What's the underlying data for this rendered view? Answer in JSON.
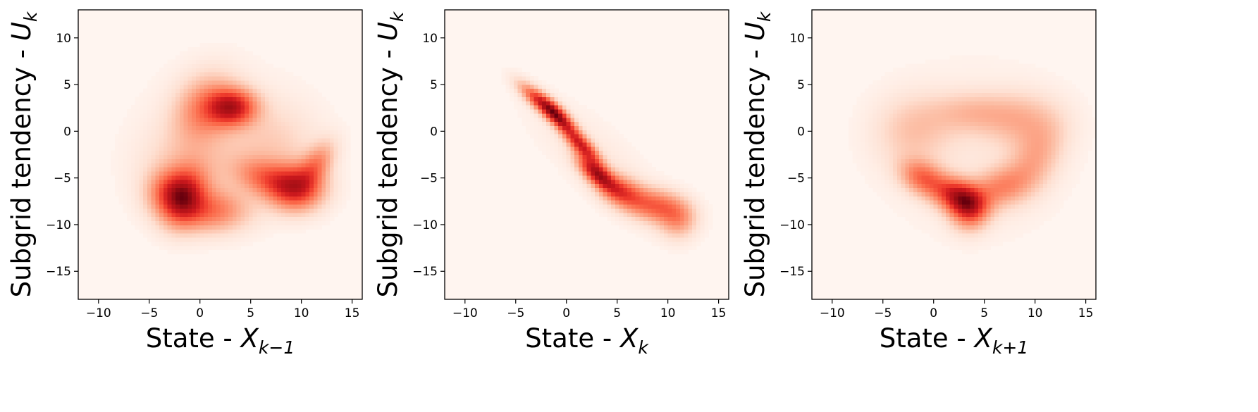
{
  "chart_data": [
    {
      "type": "heatmap",
      "colormap": "Reds",
      "xlabel": {
        "text": "State - ",
        "var": "X",
        "sub": "k−1"
      },
      "ylabel": {
        "text": "Subgrid tendency - ",
        "var": "U",
        "sub": "k"
      },
      "xlim": [
        -12,
        16
      ],
      "ylim": [
        -18,
        13
      ],
      "xticks": [
        -10,
        -5,
        0,
        5,
        10,
        15
      ],
      "yticks": [
        -15,
        -10,
        -5,
        0,
        5,
        10
      ],
      "xtick_labels": [
        "−10",
        "−5",
        "0",
        "5",
        "10",
        "15"
      ],
      "ytick_labels": [
        "−15",
        "−10",
        "−5",
        "0",
        "5",
        "10"
      ],
      "density_components": [
        {
          "x": 3.2,
          "y": 2.6,
          "sx": 1.6,
          "sy": 1.3,
          "rho": 0.0,
          "w": 1.0
        },
        {
          "x": 0.5,
          "y": 2.5,
          "sx": 2.0,
          "sy": 2.4,
          "rho": 0.2,
          "w": 0.5
        },
        {
          "x": -1.5,
          "y": -7.0,
          "sx": 1.4,
          "sy": 2.0,
          "rho": 0.2,
          "w": 0.8
        },
        {
          "x": -3.0,
          "y": -6.5,
          "sx": 1.5,
          "sy": 1.6,
          "rho": 0.0,
          "w": 0.55
        },
        {
          "x": 1.0,
          "y": -8.5,
          "sx": 2.5,
          "sy": 1.5,
          "rho": 0.0,
          "w": 0.55
        },
        {
          "x": 9.5,
          "y": -6.0,
          "sx": 1.8,
          "sy": 1.6,
          "rho": 0.0,
          "w": 0.95
        },
        {
          "x": 6.5,
          "y": -5.0,
          "sx": 2.0,
          "sy": 1.4,
          "rho": -0.3,
          "w": 0.5
        },
        {
          "x": 11.5,
          "y": -3.5,
          "sx": 1.2,
          "sy": 1.6,
          "rho": 0.5,
          "w": 0.45
        },
        {
          "x": -1.0,
          "y": -4.0,
          "sx": 3.0,
          "sy": 3.0,
          "rho": 0.0,
          "w": 0.22
        },
        {
          "x": 7.0,
          "y": -1.5,
          "sx": 3.0,
          "sy": 3.0,
          "rho": 0.0,
          "w": 0.18
        },
        {
          "x": 2.0,
          "y": -1.0,
          "sx": 5.5,
          "sy": 5.5,
          "rho": 0.0,
          "w": 0.05
        }
      ]
    },
    {
      "type": "heatmap",
      "colormap": "Reds",
      "xlabel": {
        "text": "State - ",
        "var": "X",
        "sub": "k"
      },
      "ylabel": {
        "text": "Subgrid tendency - ",
        "var": "U",
        "sub": "k"
      },
      "xlim": [
        -12,
        16
      ],
      "ylim": [
        -18,
        13
      ],
      "xticks": [
        -10,
        -5,
        0,
        5,
        10,
        15
      ],
      "yticks": [
        -15,
        -10,
        -5,
        0,
        5,
        10
      ],
      "xtick_labels": [
        "−10",
        "−5",
        "0",
        "5",
        "10",
        "15"
      ],
      "ytick_labels": [
        "−15",
        "−10",
        "−5",
        "0",
        "5",
        "10"
      ],
      "density_components": [
        {
          "x": -1.0,
          "y": 1.8,
          "sx": 1.2,
          "sy": 1.3,
          "rho": -0.8,
          "w": 1.0
        },
        {
          "x": -3.0,
          "y": 3.5,
          "sx": 1.2,
          "sy": 1.2,
          "rho": -0.8,
          "w": 0.5
        },
        {
          "x": 1.5,
          "y": -1.5,
          "sx": 1.2,
          "sy": 1.3,
          "rho": -0.8,
          "w": 0.75
        },
        {
          "x": 3.0,
          "y": -4.5,
          "sx": 1.2,
          "sy": 1.2,
          "rho": -0.7,
          "w": 0.9
        },
        {
          "x": 5.5,
          "y": -6.5,
          "sx": 1.5,
          "sy": 1.2,
          "rho": -0.4,
          "w": 0.6
        },
        {
          "x": 9.0,
          "y": -8.0,
          "sx": 1.8,
          "sy": 1.2,
          "rho": -0.2,
          "w": 0.5
        },
        {
          "x": 11.0,
          "y": -9.5,
          "sx": 1.2,
          "sy": 1.3,
          "rho": 0.0,
          "w": 0.3
        },
        {
          "x": 3.0,
          "y": -3.0,
          "sx": 4.5,
          "sy": 4.5,
          "rho": -0.8,
          "w": 0.06
        }
      ]
    },
    {
      "type": "heatmap",
      "colormap": "Reds",
      "xlabel": {
        "text": "State - ",
        "var": "X",
        "sub": "k+1"
      },
      "ylabel": {
        "text": "Subgrid tendency - ",
        "var": "U",
        "sub": "k"
      },
      "xlim": [
        -12,
        16
      ],
      "ylim": [
        -18,
        13
      ],
      "xticks": [
        -10,
        -5,
        0,
        5,
        10,
        15
      ],
      "yticks": [
        -15,
        -10,
        -5,
        0,
        5,
        10
      ],
      "xtick_labels": [
        "−10",
        "−5",
        "0",
        "5",
        "10",
        "15"
      ],
      "ytick_labels": [
        "−15",
        "−10",
        "−5",
        "0",
        "5",
        "10"
      ],
      "density_components": [
        {
          "x": 2.5,
          "y": -7.0,
          "sx": 1.6,
          "sy": 1.3,
          "rho": -0.3,
          "w": 1.0
        },
        {
          "x": 3.5,
          "y": -8.5,
          "sx": 1.2,
          "sy": 1.4,
          "rho": 0.0,
          "w": 0.6
        },
        {
          "x": -1.0,
          "y": -5.0,
          "sx": 1.5,
          "sy": 1.3,
          "rho": -0.3,
          "w": 0.6
        },
        {
          "x": 6.5,
          "y": -6.0,
          "sx": 2.0,
          "sy": 1.5,
          "rho": 0.3,
          "w": 0.45
        },
        {
          "x": 10.0,
          "y": -3.0,
          "sx": 1.8,
          "sy": 2.5,
          "rho": 0.4,
          "w": 0.3
        },
        {
          "x": 9.0,
          "y": 1.0,
          "sx": 2.5,
          "sy": 2.0,
          "rho": 0.0,
          "w": 0.25
        },
        {
          "x": 4.0,
          "y": 2.0,
          "sx": 3.0,
          "sy": 1.5,
          "rho": 0.0,
          "w": 0.25
        },
        {
          "x": -2.0,
          "y": 0.0,
          "sx": 2.5,
          "sy": 2.5,
          "rho": 0.0,
          "w": 0.22
        },
        {
          "x": 4.0,
          "y": -2.0,
          "sx": 6.0,
          "sy": 6.0,
          "rho": 0.0,
          "w": 0.06
        }
      ]
    }
  ]
}
